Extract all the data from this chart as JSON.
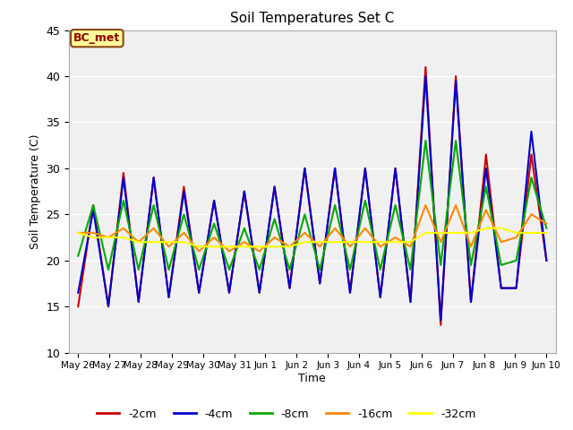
{
  "title": "Soil Temperatures Set C",
  "xlabel": "Time",
  "ylabel": "Soil Temperature (C)",
  "ylim": [
    10,
    45
  ],
  "annotation": "BC_met",
  "series": {
    "2cm": {
      "color": "#cc0000",
      "label": "-2cm",
      "values": [
        15.0,
        26.0,
        15.0,
        29.5,
        15.5,
        29.0,
        16.0,
        28.0,
        16.5,
        26.5,
        16.5,
        27.5,
        16.5,
        28.0,
        17.0,
        30.0,
        17.5,
        30.0,
        16.5,
        30.0,
        16.0,
        30.0,
        15.5,
        41.0,
        13.0,
        40.0,
        15.5,
        31.5,
        17.0,
        17.0,
        31.5,
        20.0
      ]
    },
    "4cm": {
      "color": "#0000cc",
      "label": "-4cm",
      "values": [
        16.5,
        25.5,
        15.0,
        29.0,
        15.5,
        29.0,
        16.0,
        27.5,
        16.5,
        26.5,
        16.5,
        27.5,
        16.5,
        28.0,
        17.0,
        30.0,
        17.5,
        30.0,
        16.5,
        30.0,
        16.0,
        30.0,
        15.5,
        40.0,
        13.5,
        39.5,
        15.5,
        30.0,
        17.0,
        17.0,
        34.0,
        20.0
      ]
    },
    "8cm": {
      "color": "#00aa00",
      "label": "-8cm",
      "values": [
        20.5,
        26.0,
        19.0,
        26.5,
        19.0,
        26.0,
        19.0,
        25.0,
        19.0,
        24.0,
        19.0,
        23.5,
        19.0,
        24.5,
        19.0,
        25.0,
        19.0,
        26.0,
        19.0,
        26.5,
        19.0,
        26.0,
        19.0,
        33.0,
        19.5,
        33.0,
        19.5,
        28.0,
        19.5,
        20.0,
        29.0,
        23.5
      ]
    },
    "16cm": {
      "color": "#ff8800",
      "label": "-16cm",
      "values": [
        23.0,
        23.0,
        22.5,
        23.5,
        22.0,
        23.5,
        21.5,
        23.0,
        21.0,
        22.5,
        21.0,
        22.0,
        21.0,
        22.5,
        21.5,
        23.0,
        21.5,
        23.5,
        21.5,
        23.5,
        21.5,
        22.5,
        21.5,
        26.0,
        22.0,
        26.0,
        21.5,
        25.5,
        22.0,
        22.5,
        25.0,
        24.0
      ]
    },
    "32cm": {
      "color": "#ffff00",
      "label": "-32cm",
      "values": [
        23.0,
        22.5,
        22.5,
        22.5,
        22.0,
        22.0,
        22.0,
        22.0,
        21.5,
        21.5,
        21.5,
        21.5,
        21.5,
        21.5,
        21.5,
        22.0,
        22.0,
        22.0,
        22.0,
        22.0,
        22.0,
        22.0,
        22.0,
        23.0,
        23.0,
        23.0,
        23.0,
        23.5,
        23.5,
        23.0,
        23.0,
        23.0
      ]
    }
  },
  "tick_labels": [
    "May 26",
    "May 27",
    "May 28",
    "May 29",
    "May 30",
    "May 31",
    "Jun 1",
    "Jun 2",
    "Jun 3",
    "Jun 4",
    "Jun 5",
    "Jun 6",
    "Jun 7",
    "Jun 8",
    "Jun 9",
    "Jun 10"
  ],
  "legend_order": [
    "2cm",
    "4cm",
    "8cm",
    "16cm",
    "32cm"
  ],
  "yticks": [
    10,
    15,
    20,
    25,
    30,
    35,
    40,
    45
  ],
  "fig_width": 6.4,
  "fig_height": 4.8,
  "dpi": 100
}
